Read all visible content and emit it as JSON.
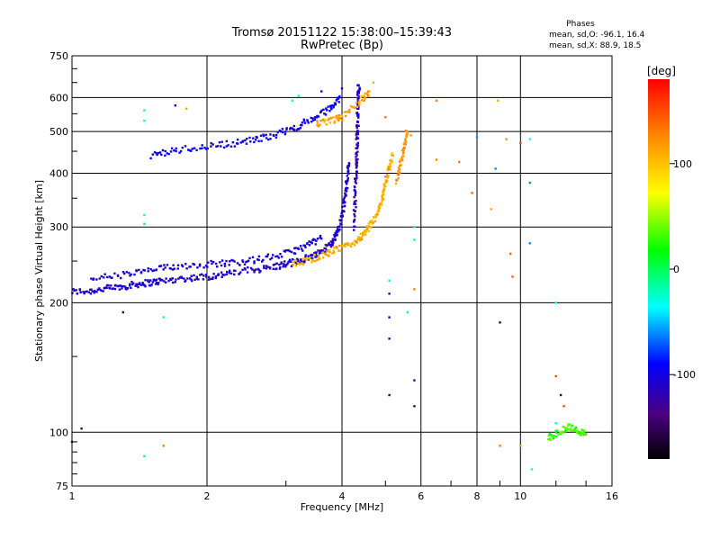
{
  "title": "Tromsø 20151122 15:38:00–15:39:43",
  "subtitle": "RwPretec (Bp)",
  "phases_info": {
    "heading": "Phases",
    "line_o": "mean, sd,O: -96.1, 16.4",
    "line_x": "mean, sd,X: 88.9, 18.5"
  },
  "colorbar": {
    "label": "[deg]",
    "ticks": [
      {
        "label": "100",
        "value": 100
      },
      {
        "label": "0",
        "value": 0
      },
      {
        "label": "-100",
        "value": -100
      }
    ]
  },
  "chart_data": {
    "type": "scatter",
    "title": "Tromsø 20151122 15:38:00–15:39:43",
    "subtitle": "RwPretec (Bp)",
    "xlabel": "Frequency [MHz]",
    "ylabel": "Stationary phase Virtual Height [km]",
    "xscale": "log",
    "yscale": "log",
    "xlim": [
      1,
      16
    ],
    "ylim": [
      75,
      750
    ],
    "color_scale": "rainbow",
    "color_range": [
      -180,
      180
    ],
    "color_label": "[deg]",
    "x_ticks": [
      {
        "label": "1",
        "value": 1
      },
      {
        "label": "2",
        "value": 2
      },
      {
        "label": "4",
        "value": 4
      },
      {
        "label": "6",
        "value": 6
      },
      {
        "label": "8",
        "value": 8
      },
      {
        "label": "10",
        "value": 10
      },
      {
        "label": "16",
        "value": 16
      }
    ],
    "y_ticks": [
      {
        "label": "75",
        "value": 75
      },
      {
        "label": "100",
        "value": 100
      },
      {
        "label": "200",
        "value": 200
      },
      {
        "label": "300",
        "value": 300
      },
      {
        "label": "400",
        "value": 400
      },
      {
        "label": "500",
        "value": 500
      },
      {
        "label": "600",
        "value": 600
      },
      {
        "label": "750",
        "value": 750
      }
    ],
    "grid": true,
    "traces": [
      {
        "desc": "O-mode F-layer trace",
        "phase": -110,
        "points": [
          [
            1.0,
            212
          ],
          [
            1.1,
            213
          ],
          [
            1.2,
            216
          ],
          [
            1.3,
            218
          ],
          [
            1.4,
            221
          ],
          [
            1.5,
            223
          ],
          [
            1.6,
            225
          ],
          [
            1.8,
            228
          ],
          [
            2.0,
            230
          ],
          [
            2.2,
            233
          ],
          [
            2.5,
            238
          ],
          [
            2.8,
            242
          ],
          [
            3.0,
            246
          ],
          [
            3.2,
            250
          ],
          [
            3.4,
            256
          ],
          [
            3.6,
            263
          ],
          [
            3.8,
            275
          ],
          [
            3.9,
            290
          ],
          [
            4.0,
            315
          ],
          [
            4.05,
            345
          ],
          [
            4.1,
            380
          ],
          [
            4.15,
            420
          ]
        ]
      },
      {
        "desc": "O-mode upper diffuse band",
        "phase": -105,
        "points": [
          [
            1.1,
            228
          ],
          [
            1.3,
            232
          ],
          [
            1.5,
            238
          ],
          [
            1.7,
            243
          ],
          [
            2.0,
            246
          ],
          [
            2.3,
            248
          ],
          [
            2.6,
            252
          ],
          [
            3.0,
            260
          ],
          [
            3.3,
            270
          ],
          [
            3.6,
            282
          ]
        ]
      },
      {
        "desc": "O-mode multi-hop trace",
        "phase": -100,
        "points": [
          [
            1.5,
            440
          ],
          [
            1.7,
            452
          ],
          [
            2.0,
            462
          ],
          [
            2.3,
            470
          ],
          [
            2.6,
            480
          ],
          [
            2.9,
            495
          ],
          [
            3.2,
            515
          ],
          [
            3.5,
            540
          ],
          [
            3.8,
            570
          ],
          [
            3.95,
            600
          ]
        ]
      },
      {
        "desc": "O-mode vertical spread near 4.3 MHz",
        "phase": -115,
        "points": [
          [
            4.25,
            300
          ],
          [
            4.28,
            350
          ],
          [
            4.3,
            400
          ],
          [
            4.32,
            450
          ],
          [
            4.33,
            500
          ],
          [
            4.34,
            550
          ],
          [
            4.35,
            600
          ],
          [
            4.36,
            640
          ]
        ]
      },
      {
        "desc": "X-mode F-layer trace",
        "phase": 110,
        "points": [
          [
            3.1,
            245
          ],
          [
            3.4,
            252
          ],
          [
            3.7,
            260
          ],
          [
            4.0,
            268
          ],
          [
            4.3,
            278
          ],
          [
            4.5,
            290
          ],
          [
            4.7,
            310
          ],
          [
            4.85,
            330
          ],
          [
            4.95,
            360
          ],
          [
            5.05,
            400
          ],
          [
            5.2,
            440
          ]
        ]
      },
      {
        "desc": "X-mode multi-hop trace",
        "phase": 115,
        "points": [
          [
            3.5,
            520
          ],
          [
            3.8,
            530
          ],
          [
            4.0,
            540
          ],
          [
            4.4,
            590
          ],
          [
            4.6,
            620
          ]
        ]
      },
      {
        "desc": "X-mode spread near 5.5 MHz",
        "phase": 120,
        "points": [
          [
            5.3,
            380
          ],
          [
            5.4,
            420
          ],
          [
            5.5,
            460
          ],
          [
            5.6,
            500
          ]
        ]
      },
      {
        "desc": "scattered returns near 100 km at 12-14 MHz",
        "phase": 30,
        "points": [
          [
            11.5,
            97
          ],
          [
            12.2,
            100
          ],
          [
            12.8,
            103
          ],
          [
            13.4,
            101
          ],
          [
            14.0,
            99
          ]
        ]
      }
    ],
    "scatter_points": [
      {
        "x": 1.45,
        "y": 560,
        "phase": -30
      },
      {
        "x": 1.45,
        "y": 530,
        "phase": -20
      },
      {
        "x": 1.7,
        "y": 575,
        "phase": -110
      },
      {
        "x": 1.8,
        "y": 565,
        "phase": 110
      },
      {
        "x": 1.45,
        "y": 320,
        "phase": -30
      },
      {
        "x": 1.45,
        "y": 305,
        "phase": -10
      },
      {
        "x": 1.3,
        "y": 190,
        "phase": -150
      },
      {
        "x": 1.6,
        "y": 185,
        "phase": -20
      },
      {
        "x": 1.05,
        "y": 102,
        "phase": -120
      },
      {
        "x": 1.0,
        "y": 95,
        "phase": -120
      },
      {
        "x": 1.45,
        "y": 88,
        "phase": -40
      },
      {
        "x": 1.6,
        "y": 93,
        "phase": 130
      },
      {
        "x": 3.1,
        "y": 590,
        "phase": -30
      },
      {
        "x": 3.2,
        "y": 605,
        "phase": -20
      },
      {
        "x": 3.6,
        "y": 620,
        "phase": -110
      },
      {
        "x": 4.0,
        "y": 630,
        "phase": -110
      },
      {
        "x": 4.7,
        "y": 650,
        "phase": 110
      },
      {
        "x": 5.0,
        "y": 540,
        "phase": 130
      },
      {
        "x": 5.7,
        "y": 490,
        "phase": 115
      },
      {
        "x": 5.8,
        "y": 300,
        "phase": -30
      },
      {
        "x": 5.8,
        "y": 280,
        "phase": -20
      },
      {
        "x": 5.1,
        "y": 225,
        "phase": -20
      },
      {
        "x": 5.1,
        "y": 210,
        "phase": -120
      },
      {
        "x": 5.8,
        "y": 215,
        "phase": 130
      },
      {
        "x": 5.6,
        "y": 190,
        "phase": -20
      },
      {
        "x": 5.1,
        "y": 185,
        "phase": -110
      },
      {
        "x": 5.1,
        "y": 165,
        "phase": -120
      },
      {
        "x": 5.8,
        "y": 132,
        "phase": -120
      },
      {
        "x": 5.1,
        "y": 122,
        "phase": -150
      },
      {
        "x": 5.8,
        "y": 115,
        "phase": -150
      },
      {
        "x": 6.5,
        "y": 590,
        "phase": 130
      },
      {
        "x": 6.5,
        "y": 430,
        "phase": 130
      },
      {
        "x": 7.3,
        "y": 425,
        "phase": 130
      },
      {
        "x": 7.8,
        "y": 360,
        "phase": 140
      },
      {
        "x": 8.0,
        "y": 485,
        "phase": -60
      },
      {
        "x": 8.6,
        "y": 330,
        "phase": 110
      },
      {
        "x": 8.8,
        "y": 410,
        "phase": -60
      },
      {
        "x": 8.9,
        "y": 590,
        "phase": 110
      },
      {
        "x": 9.0,
        "y": 180,
        "phase": -150
      },
      {
        "x": 9.3,
        "y": 480,
        "phase": 120
      },
      {
        "x": 9.5,
        "y": 260,
        "phase": 140
      },
      {
        "x": 9.6,
        "y": 230,
        "phase": 140
      },
      {
        "x": 10.0,
        "y": 470,
        "phase": 150
      },
      {
        "x": 10.5,
        "y": 480,
        "phase": -30
      },
      {
        "x": 10.5,
        "y": 380,
        "phase": -60
      },
      {
        "x": 10.5,
        "y": 275,
        "phase": -60
      },
      {
        "x": 9.0,
        "y": 93,
        "phase": 130
      },
      {
        "x": 10.0,
        "y": 93,
        "phase": 110
      },
      {
        "x": 10.6,
        "y": 82,
        "phase": -30
      },
      {
        "x": 12.0,
        "y": 200,
        "phase": -30
      },
      {
        "x": 12.0,
        "y": 135,
        "phase": 150
      },
      {
        "x": 12.3,
        "y": 122,
        "phase": -150
      },
      {
        "x": 12.5,
        "y": 115,
        "phase": 150
      },
      {
        "x": 12.0,
        "y": 105,
        "phase": -30
      }
    ]
  }
}
